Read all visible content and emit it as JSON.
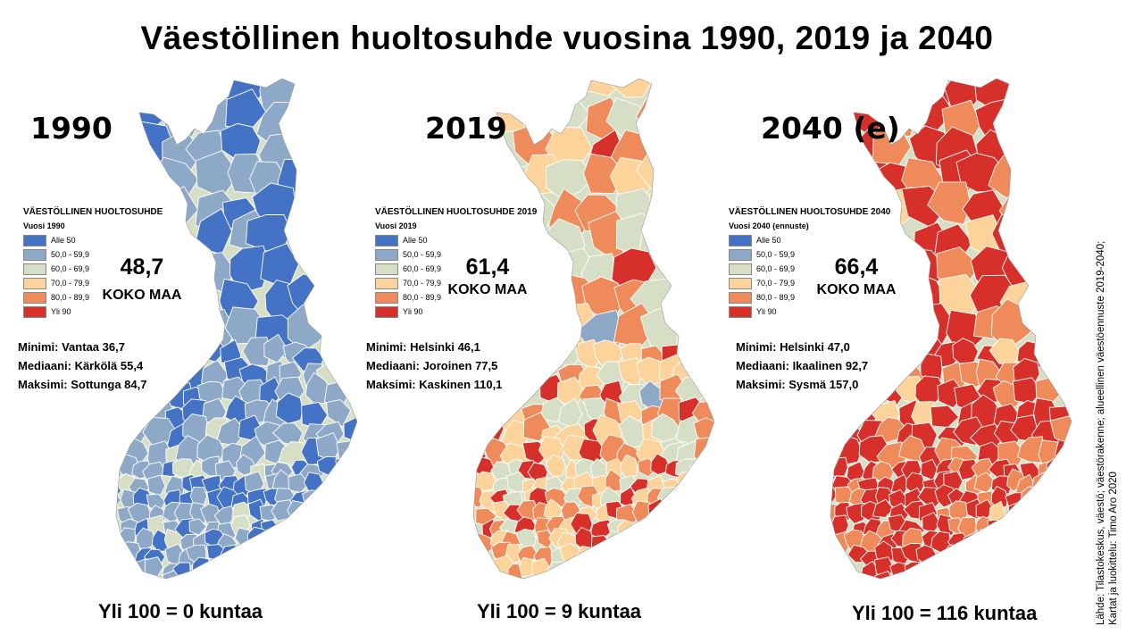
{
  "title": "Väestöllinen huoltosuhde vuosina 1990, 2019 ja 2040",
  "colors": {
    "alle50": "#4472c4",
    "c50": "#8ea9c8",
    "c60": "#d6dfc6",
    "c70": "#fcd39a",
    "c80": "#ef8a5a",
    "yli90": "#d7302b",
    "border": "#ffffff"
  },
  "legend_classes": [
    "Alle 50",
    "50,0 - 59,9",
    "60,0 - 69,9",
    "70,0 - 79,9",
    "80,0 - 89,9",
    "Yli 90"
  ],
  "panels": [
    {
      "year_label": "1990",
      "legend_title": "VÄESTÖLLINEN HUOLTOSUHDE",
      "legend_subtitle": "Vuosi 1990",
      "national_value": "48,7",
      "national_label": "KOKO MAA",
      "stats": [
        "Minimi: Vantaa 36,7",
        "Mediaani: Kärkölä 55,4",
        "Maksimi: Sottunga 84,7"
      ],
      "over_100": "Yli 100 = 0 kuntaa",
      "class_shares": {
        "alle50": 0.38,
        "c50": 0.42,
        "c60": 0.17,
        "c70": 0.03,
        "c80": 0.0,
        "yli90": 0.0
      }
    },
    {
      "year_label": "2019",
      "legend_title": "VÄESTÖLLINEN HUOLTOSUHDE 2019",
      "legend_subtitle": "Vuosi 2019",
      "national_value": "61,4",
      "national_label": "KOKO MAA",
      "stats": [
        "Minimi: Helsinki 46,1",
        "Mediaani: Joroinen 77,5",
        "Maksimi: Kaskinen 110,1"
      ],
      "over_100": "Yli 100 = 9 kuntaa",
      "class_shares": {
        "alle50": 0.02,
        "c50": 0.1,
        "c60": 0.17,
        "c70": 0.3,
        "c80": 0.24,
        "yli90": 0.17
      }
    },
    {
      "year_label": "2040 (e)",
      "legend_title": "VÄESTÖLLINEN HUOLTOSUHDE 2040",
      "legend_subtitle": "Vuosi 2040 (ennuste)",
      "national_value": "66,4",
      "national_label": "KOKO MAA",
      "stats": [
        "Minimi: Helsinki 47,0",
        "Mediaani: Ikaalinen 92,7",
        "Maksimi: Sysmä 157,0"
      ],
      "over_100": "Yli 100 = 116 kuntaa",
      "class_shares": {
        "alle50": 0.005,
        "c50": 0.04,
        "c60": 0.06,
        "c70": 0.06,
        "c80": 0.2,
        "yli90": 0.635
      }
    }
  ],
  "source_lines": [
    "Lähde: Tilastokeskus, väestö; väestörakenne; alueellinen väestöennuste 2019-2040;",
    "Kartat ja luokittelu: Timo Aro 2020"
  ]
}
